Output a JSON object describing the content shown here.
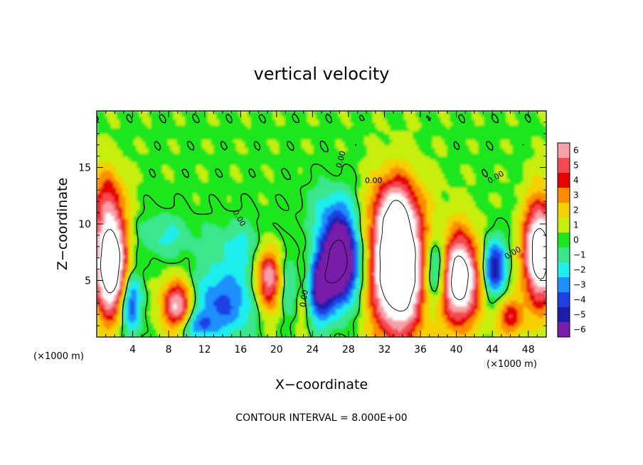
{
  "chart_data": {
    "type": "heatmap",
    "title": "vertical velocity",
    "xlabel": "X−coordinate",
    "ylabel": "Z−coordinate",
    "x_unit_left": "(×1000 m)",
    "x_unit_right": "(×1000 m)",
    "xlim": [
      0,
      50
    ],
    "ylim": [
      0,
      20
    ],
    "x_ticks": [
      4,
      8,
      12,
      16,
      20,
      24,
      28,
      32,
      36,
      40,
      44,
      48
    ],
    "x_tick_labels": [
      "4",
      "8",
      "12",
      "16",
      "20",
      "24",
      "28",
      "32",
      "36",
      "40",
      "44",
      "48"
    ],
    "y_ticks": [
      5,
      10,
      15
    ],
    "y_tick_labels": [
      "5",
      "10",
      "15"
    ],
    "colorbar": {
      "levels": [
        6,
        5,
        4,
        3,
        2,
        1,
        0,
        -1,
        -2,
        -3,
        -4,
        -5,
        -6
      ],
      "labels": [
        "6",
        "5",
        "4",
        "3",
        "2",
        "1",
        "0",
        "−1",
        "−2",
        "−3",
        "−4",
        "−5",
        "−6"
      ],
      "colors": [
        "#f7a0a8",
        "#f44a50",
        "#e60000",
        "#ff8c00",
        "#f5d000",
        "#c8ee10",
        "#1ee61e",
        "#3ae68c",
        "#1eeeee",
        "#1e90ff",
        "#1e40e6",
        "#1e1eaa",
        "#7a1eaa"
      ]
    },
    "contour_labels": [
      {
        "text": "0.00",
        "x": 15.8,
        "z": 10.5,
        "rotate": 60
      },
      {
        "text": "0.00",
        "x": 27.2,
        "z": 15.7,
        "rotate": -75
      },
      {
        "text": "0.00",
        "x": 30.8,
        "z": 13.8,
        "rotate": 0
      },
      {
        "text": "0.00",
        "x": 44.4,
        "z": 14.1,
        "rotate": -30
      },
      {
        "text": "0.00",
        "x": 46.3,
        "z": 7.4,
        "rotate": -30
      },
      {
        "text": "0.00",
        "x": 23.1,
        "z": 3.4,
        "rotate": -80
      }
    ],
    "features": [
      {
        "x": 1.5,
        "z": 6.5,
        "rx": 1.8,
        "rz": 4.5,
        "w": 11
      },
      {
        "x": 9.0,
        "z": 2.8,
        "rx": 1.8,
        "rz": 2.3,
        "w": 7
      },
      {
        "x": 19.2,
        "z": 5.2,
        "rx": 1.5,
        "rz": 3.0,
        "w": 8
      },
      {
        "x": 33.5,
        "z": 6.2,
        "rx": 3.0,
        "rz": 6.0,
        "w": 12
      },
      {
        "x": 40.2,
        "z": 5.2,
        "rx": 2.3,
        "rz": 4.0,
        "w": 10
      },
      {
        "x": 49.3,
        "z": 7.5,
        "rx": 1.8,
        "rz": 4.5,
        "w": 10
      },
      {
        "x": 23.0,
        "z": 4.5,
        "rx": 1.2,
        "rz": 3.5,
        "w": 4
      },
      {
        "x": 46.0,
        "z": 1.8,
        "rx": 1.6,
        "rz": 1.8,
        "w": 4
      },
      {
        "x": 1.2,
        "z": 12.5,
        "rx": 1.8,
        "rz": 3.0,
        "w": 3
      },
      {
        "x": 33.0,
        "z": 11.5,
        "rx": 2.5,
        "rz": 3.0,
        "w": 3
      },
      {
        "x": 27.0,
        "z": 6.8,
        "rx": 2.2,
        "rz": 3.8,
        "w": -10
      },
      {
        "x": 24.5,
        "z": 4.0,
        "rx": 1.5,
        "rz": 3.0,
        "w": -5
      },
      {
        "x": 3.8,
        "z": 3.0,
        "rx": 1.2,
        "rz": 2.8,
        "w": -5
      },
      {
        "x": 14.0,
        "z": 3.0,
        "rx": 4.0,
        "rz": 3.0,
        "w": -4
      },
      {
        "x": 21.5,
        "z": 4.8,
        "rx": 2.5,
        "rz": 3.0,
        "w": -3
      },
      {
        "x": 37.8,
        "z": 5.8,
        "rx": 1.5,
        "rz": 3.2,
        "w": -6
      },
      {
        "x": 44.2,
        "z": 6.2,
        "rx": 1.3,
        "rz": 2.5,
        "w": -6
      },
      {
        "x": 7.5,
        "z": 9.0,
        "rx": 3.0,
        "rz": 2.0,
        "w": -2
      },
      {
        "x": 16.0,
        "z": 8.0,
        "rx": 4.0,
        "rz": 2.5,
        "w": -2
      },
      {
        "x": 26.0,
        "z": 11.5,
        "rx": 3.0,
        "rz": 2.5,
        "w": -1.5
      },
      {
        "x": 11.0,
        "z": 1.0,
        "rx": 2.0,
        "rz": 1.2,
        "w": -3
      }
    ]
  },
  "footer": {
    "contour_interval": "CONTOUR INTERVAL = 8.000E+00"
  }
}
